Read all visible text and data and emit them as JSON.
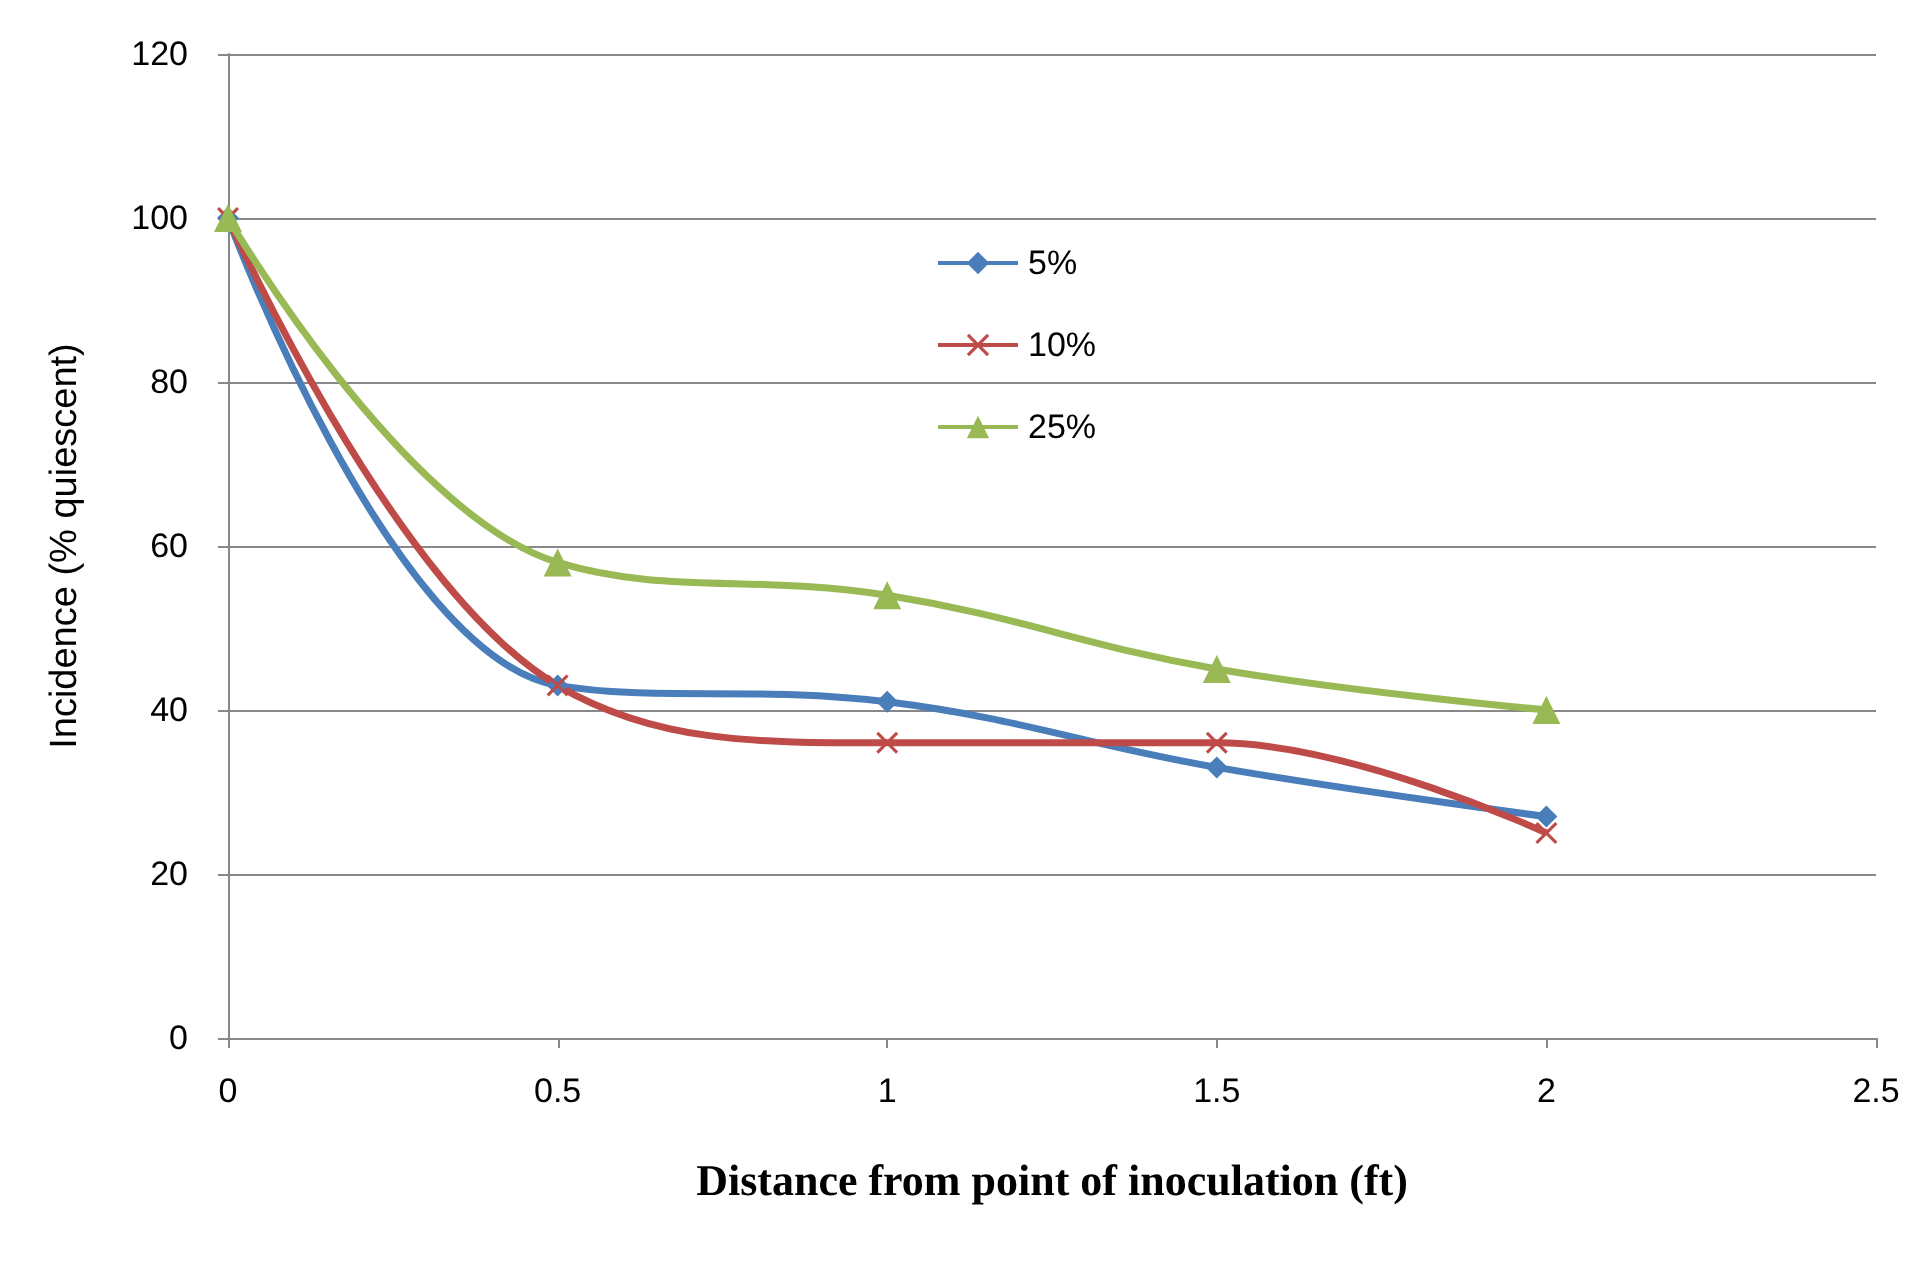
{
  "chart_data": {
    "type": "line",
    "xlabel": "Distance from point of inoculation (ft)",
    "ylabel": "Incidence (% quiescent)",
    "x": [
      0,
      0.5,
      1,
      1.5,
      2
    ],
    "series": [
      {
        "name": "5%",
        "color": "#4a7ebb",
        "marker": "diamond",
        "values": [
          100,
          43,
          41,
          33,
          27
        ]
      },
      {
        "name": "10%",
        "color": "#be4b48",
        "marker": "cross",
        "values": [
          100,
          43,
          36,
          36,
          25
        ]
      },
      {
        "name": "25%",
        "color": "#98b954",
        "marker": "triangle",
        "values": [
          100,
          58,
          54,
          45,
          40
        ]
      }
    ],
    "xlim": [
      0,
      2.5
    ],
    "xticks": [
      0,
      0.5,
      1,
      1.5,
      2,
      2.5
    ],
    "ylim": [
      0,
      120
    ],
    "yticks": [
      0,
      20,
      40,
      60,
      80,
      100,
      120
    ],
    "grid": "y",
    "legend": "top",
    "line_style": "solid"
  }
}
